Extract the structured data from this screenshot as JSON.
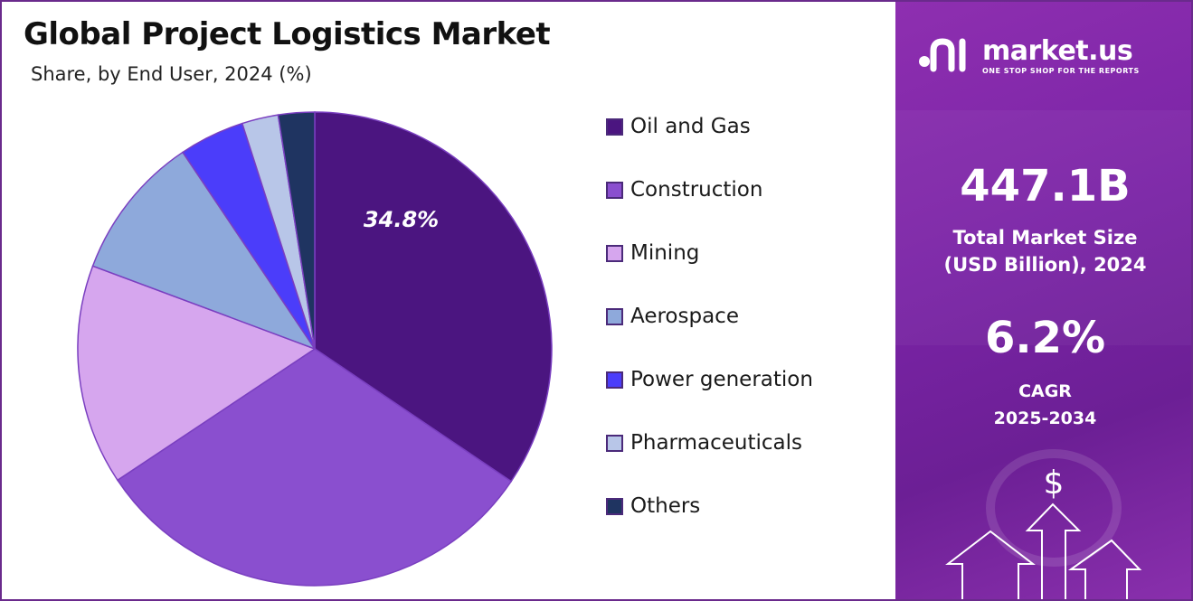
{
  "header": {
    "title": "Global Project Logistics Market",
    "subtitle": "Share, by End User, 2024 (%)"
  },
  "chart_data": {
    "type": "pie",
    "title": "Global Project Logistics Market",
    "subtitle": "Share, by End User, 2024 (%)",
    "categories": [
      "Oil and Gas",
      "Construction",
      "Mining",
      "Aerospace",
      "Power generation",
      "Pharmaceuticals",
      "Others"
    ],
    "values": [
      34.8,
      31.5,
      15.2,
      10.0,
      4.5,
      2.5,
      2.5
    ],
    "colors": [
      "#4b1580",
      "#8a4fcf",
      "#d6a6ee",
      "#8ea9db",
      "#4b3dfa",
      "#b8c6e8",
      "#1f3461"
    ],
    "data_labels": [
      {
        "category": "Oil and Gas",
        "text": "34.8%"
      }
    ],
    "start_angle": "12 o'clock",
    "direction": "clockwise",
    "legend_position": "right"
  },
  "side_panel": {
    "brand_name": "market.us",
    "brand_tagline": "ONE STOP SHOP FOR THE REPORTS",
    "market_size_value": "447.1B",
    "market_size_label_line1": "Total Market Size",
    "market_size_label_line2": "(USD Billion), 2024",
    "cagr_value": "6.2%",
    "cagr_label": "CAGR",
    "cagr_period": "2025-2034",
    "dollar_symbol": "$",
    "panel_color": "#7a24a6",
    "icons": [
      "market-us-logo-icon",
      "dollar-icon",
      "arrow-up-icon"
    ]
  }
}
